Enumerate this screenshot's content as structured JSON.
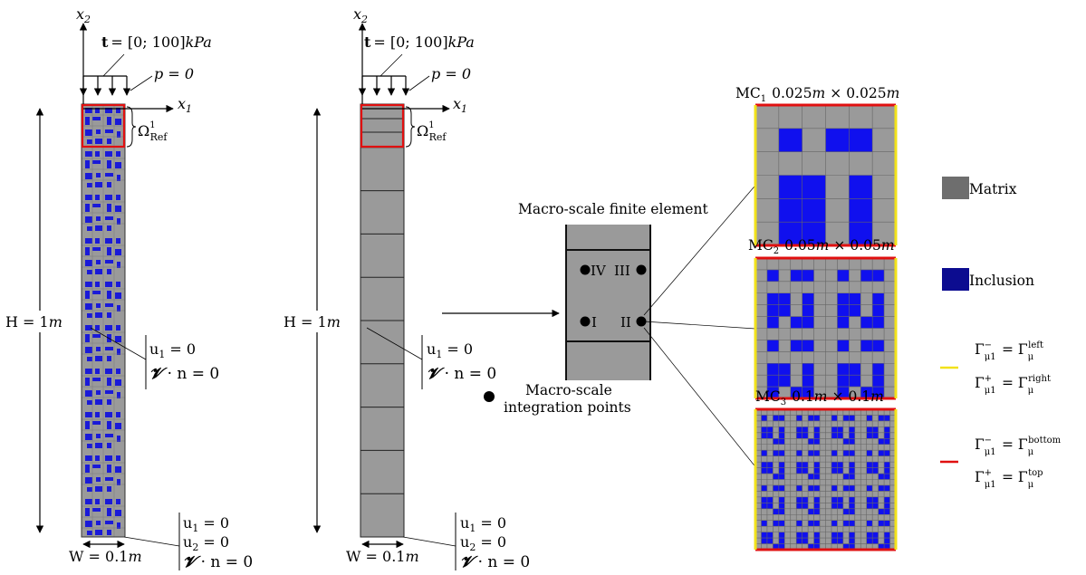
{
  "left_column": {
    "axis_x2": "x",
    "axis_x2_sub": "2",
    "axis_x1": "x",
    "axis_x1_sub": "1",
    "traction_t": "t",
    "traction_value": "= [0; 100]",
    "traction_unit": "kPa",
    "pressure": "p = 0",
    "omega": "Ω",
    "omega_sup": "1",
    "omega_sub": "Ref",
    "height_label": "H = 1",
    "height_unit": "m",
    "width_label": "W = 0.1",
    "width_unit": "m",
    "side_bc_1": "u",
    "side_bc_1_sub": "1",
    "side_bc_1_rest": " = 0",
    "side_bc_2_v": "𝓥",
    "side_bc_2_rest": " · n = 0",
    "bottom_bc_1": "u",
    "bottom_bc_1_sub": "1",
    "bottom_bc_1_rest": " = 0",
    "bottom_bc_2": "u",
    "bottom_bc_2_sub": "2",
    "bottom_bc_2_rest": " = 0",
    "bottom_bc_3_v": "𝓥",
    "bottom_bc_3_rest": " · n = 0"
  },
  "middle_column": {
    "axis_x2": "x",
    "axis_x2_sub": "2",
    "axis_x1": "x",
    "axis_x1_sub": "1",
    "traction_t": "t",
    "traction_value": "= [0; 100]",
    "traction_unit": "kPa",
    "pressure": "p = 0",
    "omega": "Ω",
    "omega_sup": "1",
    "omega_sub": "Ref",
    "height_label": "H = 1",
    "height_unit": "m",
    "width_label": "W = 0.1",
    "width_unit": "m",
    "side_bc_1": "u",
    "side_bc_1_sub": "1",
    "side_bc_1_rest": " = 0",
    "side_bc_2_v": "𝓥",
    "side_bc_2_rest": " · n = 0",
    "bottom_bc_1": "u",
    "bottom_bc_1_sub": "1",
    "bottom_bc_1_rest": " = 0",
    "bottom_bc_2": "u",
    "bottom_bc_2_sub": "2",
    "bottom_bc_2_rest": " = 0",
    "bottom_bc_3_v": "𝓥",
    "bottom_bc_3_rest": " · n = 0"
  },
  "macro_element": {
    "title": "Macro-scale finite element",
    "point_iv": "IV",
    "point_iii": "III",
    "point_i": "I",
    "point_ii": "II",
    "legend_line1": "Macro-scale",
    "legend_line2": "integration points"
  },
  "micro_cells": [
    {
      "name": "MC",
      "sub": "1",
      "size": "0.025",
      "times": "×",
      "unit": "m"
    },
    {
      "name": "MC",
      "sub": "2",
      "size": "0.05",
      "times": "×",
      "unit": "m"
    },
    {
      "name": "MC",
      "sub": "3",
      "size": "0.1",
      "times": "×",
      "unit": "m"
    }
  ],
  "legend": {
    "matrix": "Matrix",
    "inclusion": "Inclusion",
    "gamma": "Γ",
    "yellow_l1_sub": "μ1",
    "yellow_l1_sup": "−",
    "yellow_l1_eq": " = Γ",
    "yellow_l1_rsub": "μ",
    "yellow_l1_rsup": "left",
    "yellow_l2_sub": "μ1",
    "yellow_l2_sup": "+",
    "yellow_l2_eq": " = Γ",
    "yellow_l2_rsub": "μ",
    "yellow_l2_rsup": "right",
    "red_l1_sub": "μ1",
    "red_l1_sup": "−",
    "red_l1_eq": " = Γ",
    "red_l1_rsub": "μ",
    "red_l1_rsup": "bottom",
    "red_l2_sub": "μ1",
    "red_l2_sup": "+",
    "red_l2_eq": " = Γ",
    "red_l2_rsub": "μ",
    "red_l2_rsup": "top"
  },
  "colors": {
    "matrix": "#6e6e6e",
    "cell_gray": "#9a9a9a",
    "inclusion": "#1010ee",
    "inclusion_legend": "#0c0c90",
    "red": "#e01010",
    "yellow": "#f2e21a"
  }
}
